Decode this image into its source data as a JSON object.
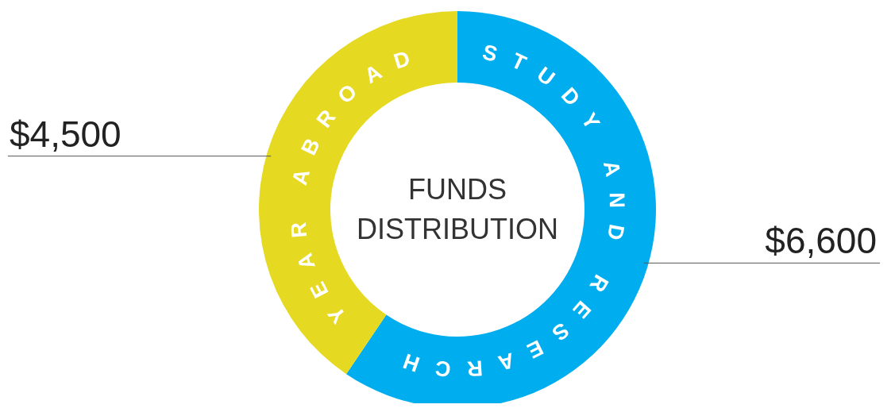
{
  "chart_data": {
    "type": "donut",
    "title": "FUNDS DISTRIBUTION",
    "categories": [
      "STUDY AND RESEARCH",
      "YEAR ABROAD"
    ],
    "values": [
      6600,
      4500
    ],
    "colors": [
      "#00aeef",
      "#e6d922"
    ],
    "value_labels": [
      "$6,600",
      "$4,500"
    ]
  }
}
